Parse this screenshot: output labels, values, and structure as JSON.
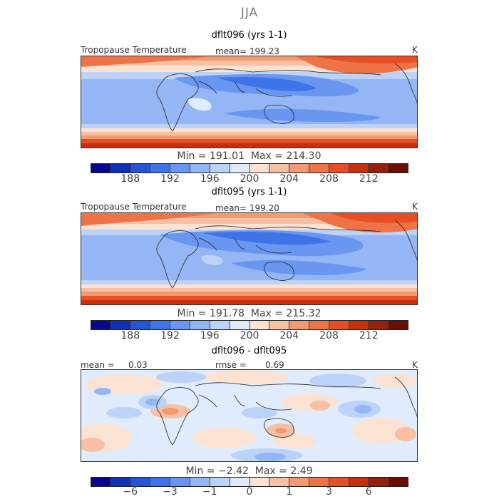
{
  "title": "JJA",
  "colors": {
    "scale": [
      "#08088e",
      "#1030b8",
      "#2454d8",
      "#3f74e8",
      "#6896f0",
      "#94b6f4",
      "#bcd2f8",
      "#e0ecfb",
      "#fbe2d2",
      "#f8c0a2",
      "#f49a72",
      "#ee7448",
      "#e84e24",
      "#c8300c",
      "#962008",
      "#6a0e02"
    ],
    "coast": "#222222"
  },
  "chart_data": [
    {
      "type": "heatmap",
      "panel_title": "dflt096 (yrs 1-1)",
      "field_label": "Tropopause Temperature",
      "stat_text": "mean= 199.23",
      "units": "K",
      "min_label": "Min",
      "min_value": "191.01",
      "max_label": "Max",
      "max_value": "214.30",
      "colorbar_ticks": [
        "188",
        "192",
        "196",
        "200",
        "204",
        "208",
        "212"
      ],
      "mean_value": 199.23
    },
    {
      "type": "heatmap",
      "panel_title": "dflt095 (yrs 1-1)",
      "field_label": "Tropopause Temperature",
      "stat_text": "mean= 199.20",
      "units": "K",
      "min_label": "Min",
      "min_value": "191.78",
      "max_label": "Max",
      "max_value": "215.32",
      "colorbar_ticks": [
        "188",
        "192",
        "196",
        "200",
        "204",
        "208",
        "212"
      ],
      "mean_value": 199.2
    },
    {
      "type": "heatmap",
      "panel_title": "dflt096 - dflt095",
      "mean_text": "mean =",
      "mean_val": "0.03",
      "rmse_text": "rmse =",
      "rmse_val": "0.69",
      "units": "K",
      "min_label": "Min",
      "min_value": "−2.42",
      "max_label": "Max",
      "max_value": "2.49",
      "colorbar_ticks": [
        "−6",
        "−3",
        "−1",
        "0",
        "1",
        "3",
        "6"
      ]
    }
  ]
}
